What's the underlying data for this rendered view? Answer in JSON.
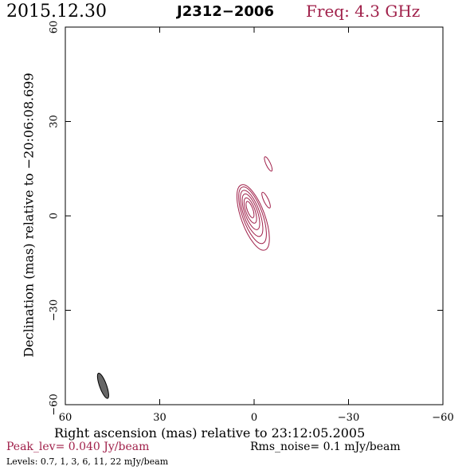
{
  "header": {
    "date": "2015.12.30",
    "source": "J2312−2006",
    "freq": "Freq: 4.3 GHz"
  },
  "axes": {
    "xlabel": "Right ascension (mas) relative to 23:12:05.2005",
    "ylabel": "Declination (mas) relative to −20:06:08.699"
  },
  "footer": {
    "peak": "Peak_lev=  0.040 Jy/beam",
    "rms": "Rms_noise=  0.1 mJy/beam",
    "levels": "Levels: 0.7,   1,   3,   6,  11,  22 mJy/beam"
  },
  "colors": {
    "contour": "#a0204a",
    "beam_fill": "#666666",
    "frame": "#000000"
  },
  "chart_data": {
    "type": "contour",
    "x_range": [
      60,
      -60
    ],
    "y_range": [
      -60,
      60
    ],
    "x_ticks": [
      60,
      30,
      0,
      -30,
      -60
    ],
    "y_ticks": [
      60,
      30,
      0,
      -30,
      -60
    ],
    "x_tick_labels": [
      "60",
      "30",
      "0",
      "−30",
      "−60"
    ],
    "y_tick_labels": [
      "60",
      "30",
      "0",
      "−30",
      "−60"
    ],
    "beam": {
      "x": 48,
      "y": -54,
      "major_mas": 8.5,
      "minor_mas": 2.2,
      "pa_deg": 20
    },
    "contours": [
      {
        "level_mJy": 0.7,
        "cx": 0.3,
        "cy": -0.5,
        "major_mas": 22,
        "minor_mas": 7.5,
        "pa_deg": 20
      },
      {
        "level_mJy": 1,
        "cx": 0.5,
        "cy": 0.2,
        "major_mas": 19,
        "minor_mas": 6.3,
        "pa_deg": 20
      },
      {
        "level_mJy": 3,
        "cx": 0.8,
        "cy": 0.8,
        "major_mas": 15.5,
        "minor_mas": 5.1,
        "pa_deg": 20
      },
      {
        "level_mJy": 6,
        "cx": 1.0,
        "cy": 1.3,
        "major_mas": 12,
        "minor_mas": 4.0,
        "pa_deg": 20
      },
      {
        "level_mJy": 11,
        "cx": 1.2,
        "cy": 1.7,
        "major_mas": 8.5,
        "minor_mas": 2.9,
        "pa_deg": 20
      },
      {
        "level_mJy": 22,
        "cx": 1.3,
        "cy": 2.0,
        "major_mas": 5.5,
        "minor_mas": 1.8,
        "pa_deg": 20
      },
      {
        "level_mJy": 0.7,
        "cx": -3.8,
        "cy": 5.0,
        "major_mas": 5.5,
        "minor_mas": 1.5,
        "pa_deg": 25
      },
      {
        "level_mJy": 0.7,
        "cx": -4.5,
        "cy": 16.5,
        "major_mas": 5.0,
        "minor_mas": 1.4,
        "pa_deg": 25
      }
    ]
  }
}
